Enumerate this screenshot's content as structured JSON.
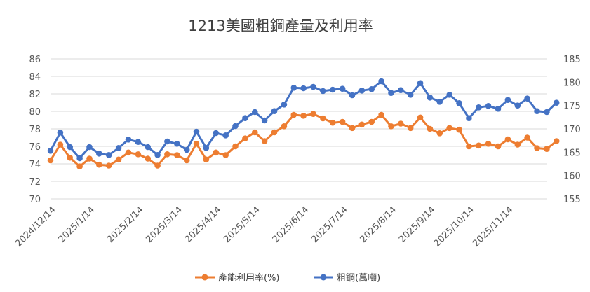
{
  "chart_data": {
    "type": "line",
    "title": "1213美國粗鋼產量及利用率",
    "x_labels": [
      "2024/12/14",
      "2025/1/14",
      "2025/2/14",
      "2025/3/14",
      "2025/4/14",
      "2025/5/14",
      "2025/6/14",
      "2025/7/14",
      "2025/8/14",
      "2025/9/14",
      "2025/10/14",
      "2025/11/14"
    ],
    "x_label_week_index": [
      0,
      4,
      9,
      13,
      17,
      21,
      26,
      30,
      35,
      39,
      43,
      47
    ],
    "y_left": {
      "min": 70,
      "max": 86,
      "step": 2,
      "ticks": [
        "70",
        "72",
        "74",
        "76",
        "78",
        "80",
        "82",
        "84",
        "86"
      ]
    },
    "y_right": {
      "min": 155,
      "max": 185,
      "step": 5,
      "ticks": [
        "155",
        "160",
        "165",
        "170",
        "175",
        "180",
        "185"
      ]
    },
    "grid": "horizontal",
    "legend_position": "bottom",
    "series": [
      {
        "name": "產能利用率(%)",
        "axis": "left",
        "color": "#ED7D31",
        "values": [
          74.4,
          76.2,
          74.7,
          73.7,
          74.6,
          73.9,
          73.8,
          74.5,
          75.3,
          75.1,
          74.6,
          73.8,
          75.1,
          75.0,
          74.4,
          76.3,
          74.5,
          75.3,
          75.0,
          76.0,
          76.9,
          77.6,
          76.6,
          77.6,
          78.3,
          79.6,
          79.5,
          79.7,
          79.2,
          78.7,
          78.8,
          78.1,
          78.5,
          78.8,
          79.6,
          78.3,
          78.6,
          78.1,
          79.3,
          78.0,
          77.5,
          78.1,
          77.9,
          76.0,
          76.1,
          76.3,
          76.0,
          76.8,
          76.2,
          77.0,
          75.8,
          75.7,
          76.6
        ]
      },
      {
        "name": "粗鋼(萬噸)",
        "axis": "right",
        "color": "#4472C4",
        "values": [
          165.3,
          169.2,
          166.1,
          163.7,
          166.1,
          164.7,
          164.4,
          165.9,
          167.7,
          167.2,
          166.1,
          164.4,
          167.3,
          166.8,
          165.5,
          169.4,
          165.9,
          169.1,
          168.6,
          170.6,
          172.3,
          173.6,
          171.8,
          173.8,
          175.2,
          178.8,
          178.7,
          179.0,
          178.1,
          178.4,
          178.6,
          177.2,
          178.2,
          178.5,
          180.2,
          177.7,
          178.3,
          177.3,
          179.8,
          176.7,
          175.8,
          177.3,
          175.5,
          172.3,
          174.6,
          174.9,
          174.3,
          176.2,
          175.0,
          176.5,
          173.8,
          173.6,
          175.6
        ]
      }
    ]
  }
}
